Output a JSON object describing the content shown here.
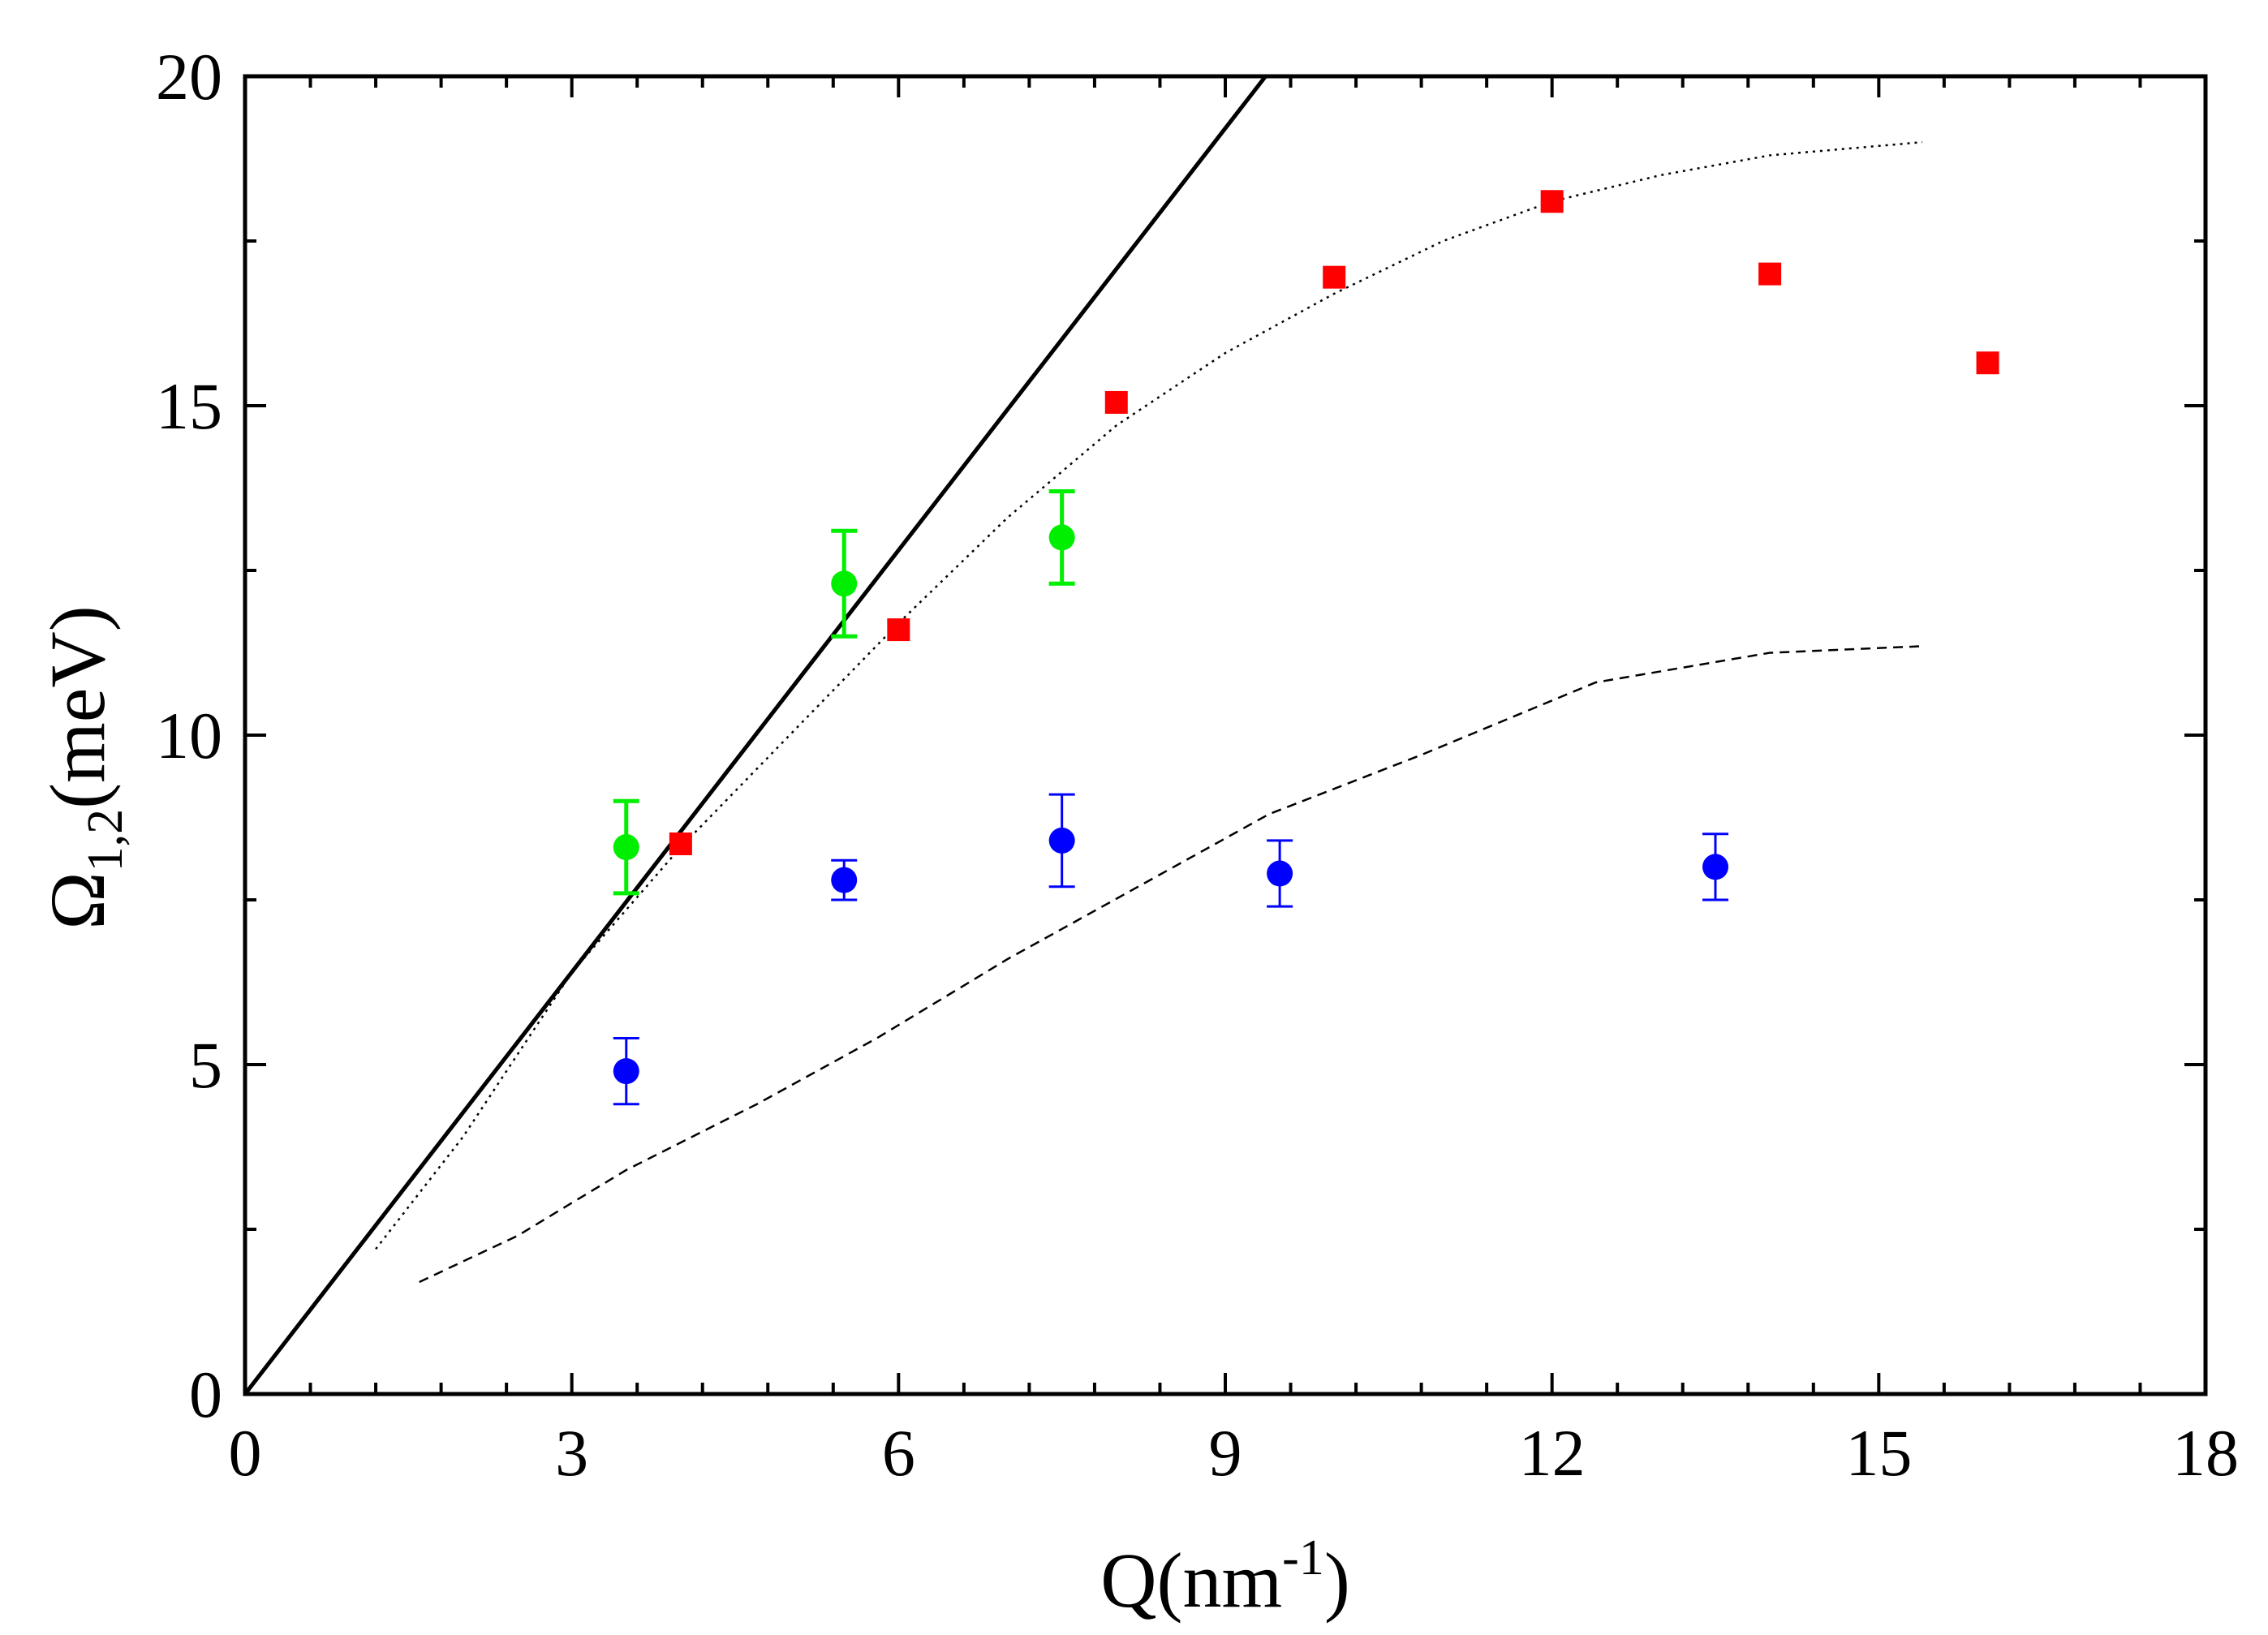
{
  "chart_data": {
    "type": "scatter",
    "title": "",
    "xlabel": "Q(nm",
    "xlabel_sup": "-1",
    "xlabel_close": ")",
    "ylabel": "Ω",
    "ylabel_sub": "1,2",
    "ylabel_rest": "(meV)",
    "xlim": [
      0,
      18
    ],
    "ylim": [
      0,
      20
    ],
    "x_ticks": [
      0,
      3,
      6,
      9,
      12,
      15,
      18
    ],
    "x_tick_labels": [
      "0",
      "3",
      "6",
      "9",
      "12",
      "15",
      "18"
    ],
    "y_ticks": [
      0,
      5,
      10,
      15,
      20
    ],
    "y_tick_labels": [
      "0",
      "5",
      "10",
      "15",
      "20"
    ],
    "x_minor_step": 0.6,
    "y_minor_step": 2.5,
    "grid": false,
    "series": [
      {
        "name": "solid line",
        "kind": "line",
        "style": "solid",
        "color": "#000000",
        "x": [
          0,
          9.37
        ],
        "y": [
          0,
          20
        ]
      },
      {
        "name": "dotted line",
        "kind": "line",
        "style": "dotted",
        "color": "#000000",
        "x": [
          1.2,
          2.0,
          3.0,
          4.0,
          5.0,
          6.0,
          7.0,
          8.0,
          9.0,
          10.0,
          11.0,
          12.0,
          13.0,
          14.0,
          15.4
        ],
        "y": [
          2.2,
          3.9,
          6.4,
          8.3,
          10.0,
          11.7,
          13.3,
          14.7,
          15.8,
          16.7,
          17.5,
          18.1,
          18.5,
          18.8,
          19.0
        ]
      },
      {
        "name": "dashed line",
        "kind": "line",
        "style": "dashed",
        "color": "#000000",
        "x": [
          1.6,
          2.5,
          3.5,
          4.7,
          5.8,
          7.0,
          8.2,
          9.4,
          10.8,
          12.4,
          14.0,
          15.4
        ],
        "y": [
          1.7,
          2.4,
          3.4,
          4.4,
          5.4,
          6.6,
          7.7,
          8.8,
          9.7,
          10.8,
          11.25,
          11.35
        ]
      },
      {
        "name": "red squares",
        "kind": "marker",
        "marker": "square",
        "color": "#ff0000",
        "x": [
          4,
          6,
          8,
          10,
          12,
          14,
          16
        ],
        "y": [
          8.35,
          11.6,
          15.05,
          16.95,
          18.1,
          17.0,
          15.65
        ]
      },
      {
        "name": "green circles",
        "kind": "marker",
        "marker": "circle",
        "color": "#00ee00",
        "x": [
          3.5,
          5.5,
          7.5
        ],
        "y": [
          8.3,
          12.3,
          13.0
        ],
        "yerr": [
          0.7,
          0.8,
          0.7
        ]
      },
      {
        "name": "blue circles",
        "kind": "marker",
        "marker": "circle",
        "color": "#0000ff",
        "x": [
          3.5,
          5.5,
          7.5,
          9.5,
          13.5
        ],
        "y": [
          4.9,
          7.8,
          8.4,
          7.9,
          8.0
        ],
        "yerr": [
          0.5,
          0.3,
          0.7,
          0.5,
          0.5
        ]
      }
    ]
  }
}
